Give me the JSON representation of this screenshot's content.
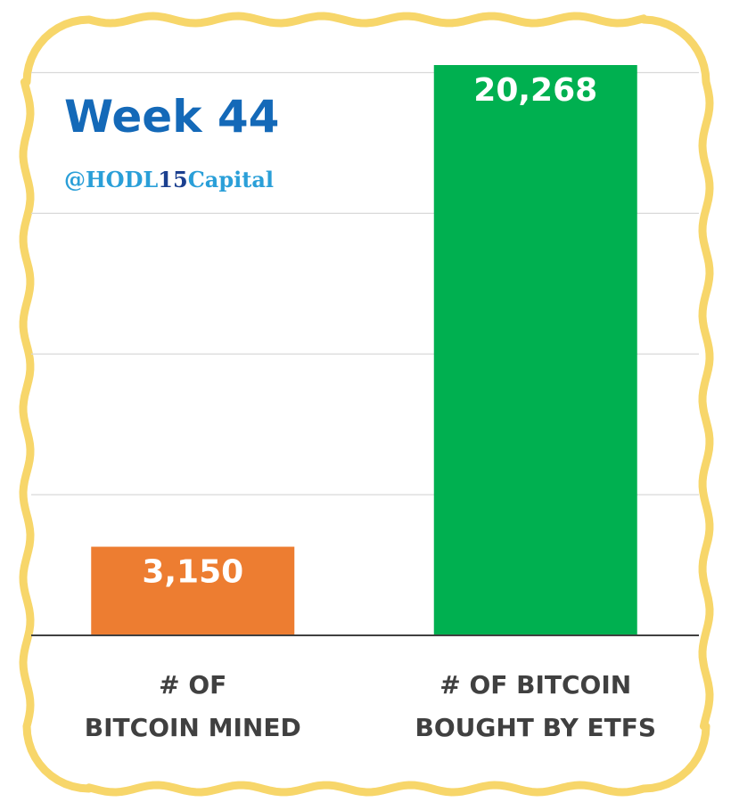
{
  "title": "Week 44",
  "handle": {
    "prefix": "@HODL",
    "number": "15",
    "suffix": "Capital"
  },
  "colors": {
    "title": "#1469b8",
    "handle": "#2a9fd8",
    "handle_number": "#1b3f8f",
    "frame": "#f7d66a",
    "gridline": "#d9d9d9",
    "axis": "#404040",
    "category_text": "#404040",
    "value_label": "#ffffff"
  },
  "chart_data": {
    "type": "bar",
    "categories": [
      [
        "# OF",
        "BITCOIN MINED"
      ],
      [
        "# OF BITCOIN",
        "BOUGHT BY ETFS"
      ]
    ],
    "values": [
      3150,
      20268
    ],
    "data_labels": [
      "3,150",
      "20,268"
    ],
    "bar_colors": [
      "#ed7d31",
      "#00b050"
    ],
    "ylim": [
      0,
      20268
    ],
    "gridline_values": [
      5000,
      10000,
      15000,
      20000
    ],
    "grid": true,
    "legend": "none",
    "xlabel": "",
    "ylabel": ""
  }
}
